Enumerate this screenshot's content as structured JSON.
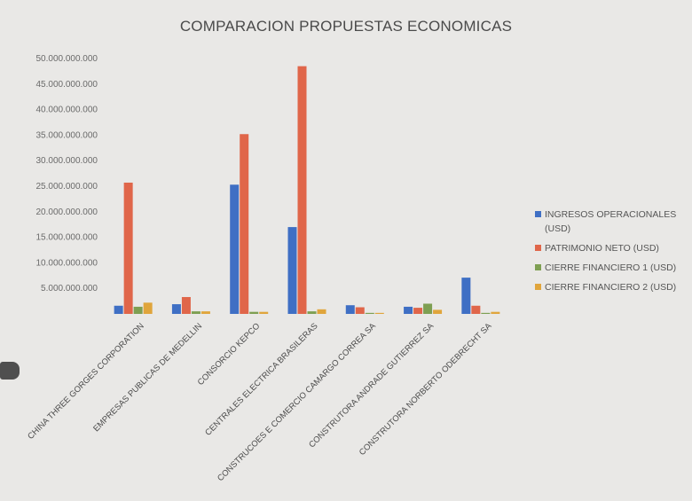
{
  "chart_data": {
    "type": "bar",
    "title": "COMPARACION PROPUESTAS ECONOMICAS",
    "xlabel": "",
    "ylabel": "",
    "ylim": [
      0,
      50000000000
    ],
    "y_ticks": [
      "",
      "5.000.000.000",
      "10.000.000.000",
      "15.000.000.000",
      "20.000.000.000",
      "25.000.000.000",
      "30.000.000.000",
      "35.000.000.000",
      "40.000.000.000",
      "45.000.000.000",
      "50.000.000.000"
    ],
    "categories": [
      "CHINA THREE GORGES CORPORATION",
      "EMPRESAS PUBLICAS DE MEDELLIN",
      "CONSORCIO KEPCO",
      "CENTRALES ELECTRICA BRASILERAS",
      "CONSTRUCOES E COMERCIO CAMARGO CORREA SA",
      "CONSTRUTORA ANDRADE GUTIERREZ SA",
      "CONSTRUTORA NORBERTO ODEBRECHT SA"
    ],
    "series": [
      {
        "name": "INGRESOS OPERACIONALES (USD)",
        "color": "#3f6fc4",
        "values": [
          1600000000,
          1900000000,
          25300000000,
          17000000000,
          1700000000,
          1400000000,
          7100000000
        ]
      },
      {
        "name": "PATRIMONIO NETO (USD)",
        "color": "#e0664a",
        "values": [
          25700000000,
          3300000000,
          35200000000,
          48500000000,
          1300000000,
          1200000000,
          1600000000
        ]
      },
      {
        "name": "CIERRE FINANCIERO 1 (USD)",
        "color": "#7e9f52",
        "values": [
          1400000000,
          500000000,
          400000000,
          500000000,
          200000000,
          2000000000,
          200000000
        ]
      },
      {
        "name": "CIERRE FINANCIERO 2 (USD)",
        "color": "#e0a53c",
        "values": [
          2200000000,
          500000000,
          400000000,
          900000000,
          200000000,
          800000000,
          400000000
        ]
      }
    ],
    "legend_position": "right",
    "grid": false
  }
}
